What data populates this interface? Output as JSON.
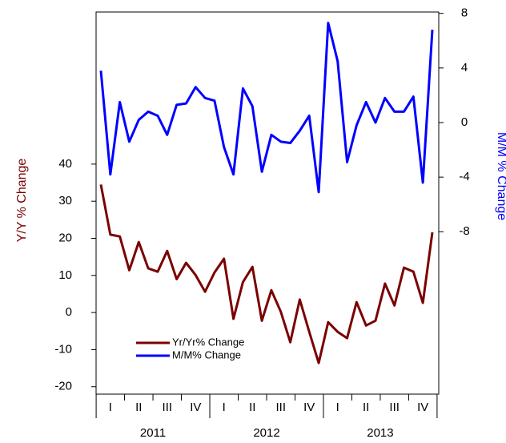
{
  "chart_data": {
    "type": "line",
    "y_label": "Y/Y % Change",
    "y2_label": "M/M % Change",
    "quarters": [
      "I",
      "II",
      "III",
      "IV",
      "I",
      "II",
      "III",
      "IV",
      "I",
      "II",
      "III",
      "IV"
    ],
    "years": [
      "2011",
      "2012",
      "2013"
    ],
    "ylim": [
      -22,
      81
    ],
    "yticks": [
      -20,
      -10,
      0,
      10,
      20,
      30,
      40
    ],
    "y2lim": [
      -19.9,
      8.1
    ],
    "y2ticks": [
      -8,
      -4,
      0,
      4,
      8
    ],
    "legend_position": "lower left",
    "series": [
      {
        "name": "Yr/Yr% Change",
        "color": "#7b0000",
        "axis": "y",
        "values": [
          34.5,
          21,
          20.5,
          11.4,
          19,
          11.9,
          11,
          16.6,
          9,
          13.4,
          10.1,
          5.6,
          10.8,
          14.5,
          -1.7,
          8.2,
          12.3,
          -2.2,
          6,
          0.2,
          -8,
          3.5,
          -5.2,
          -13.6,
          -2.6,
          -5.2,
          -6.9,
          2.8,
          -3.5,
          -2.2,
          7.8,
          1.9,
          12.1,
          11,
          2.6,
          21.6
        ]
      },
      {
        "name": "M/M% Change",
        "color": "#0000ff",
        "axis": "y2",
        "values": [
          3.8,
          -3.8,
          1.5,
          -1.4,
          0.2,
          0.8,
          0.5,
          -0.9,
          1.3,
          1.4,
          2.6,
          1.8,
          1.6,
          -1.8,
          -3.8,
          2.5,
          1.2,
          -3.6,
          -0.9,
          -1.4,
          -1.5,
          -0.6,
          0.5,
          -5.1,
          7.3,
          4.5,
          -2.9,
          -0.2,
          1.5,
          0,
          1.8,
          0.8,
          0.8,
          1.9,
          -4.4,
          6.8
        ]
      }
    ]
  }
}
